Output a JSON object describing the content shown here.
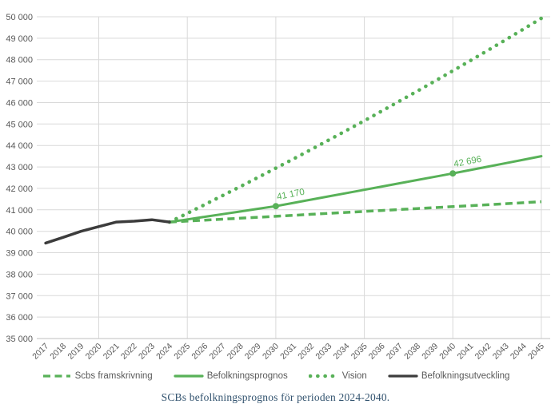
{
  "caption": "SCBs befolkningsprognos för perioden 2024-2040.",
  "colors": {
    "green": "#58b158",
    "black_line": "#3c3c3c",
    "grid": "#d9d9d9",
    "axis_line": "#bfbfbf",
    "tick_text": "#595959",
    "legend_text": "#595959",
    "caption_text": "#31526e",
    "background": "#ffffff"
  },
  "chart_data": {
    "type": "line",
    "title": "",
    "xlabel": "",
    "ylabel": "",
    "grid": true,
    "legend_position": "bottom",
    "ylim": [
      35000,
      50000
    ],
    "y_tick_step": 1000,
    "y_tick_labels": [
      "35 000",
      "36 000",
      "37 000",
      "38 000",
      "39 000",
      "40 000",
      "41 000",
      "42 000",
      "43 000",
      "44 000",
      "45 000",
      "46 000",
      "47 000",
      "48 000",
      "49 000",
      "50 000"
    ],
    "x_categories": [
      "2017",
      "2018",
      "2019",
      "2020",
      "2021",
      "2022",
      "2023",
      "2024",
      "2025",
      "2026",
      "2027",
      "2028",
      "2029",
      "2030",
      "2031",
      "2032",
      "2033",
      "2034",
      "2035",
      "2036",
      "2037",
      "2038",
      "2039",
      "2040",
      "2041",
      "2042",
      "2043",
      "2044",
      "2045"
    ],
    "vertical_gridline_years": [
      "2020",
      "2025",
      "2030",
      "2035",
      "2040",
      "2045"
    ],
    "series": [
      {
        "name": "Scbs framskrivning",
        "line_style": "dashed",
        "color_key": "green",
        "start_year": "2024",
        "values": [
          40430,
          40475,
          40520,
          40565,
          40610,
          40655,
          40700,
          40745,
          40790,
          40835,
          40880,
          40925,
          40970,
          41015,
          41060,
          41105,
          41150,
          41195,
          41240,
          41285,
          41330,
          41380
        ]
      },
      {
        "name": "Befolkningsprognos",
        "line_style": "solid",
        "color_key": "green",
        "start_year": "2024",
        "values": [
          40430,
          40553,
          40677,
          40800,
          40923,
          41047,
          41170,
          41323,
          41475,
          41628,
          41781,
          41933,
          42086,
          42238,
          42391,
          42543,
          42696,
          42857,
          43018,
          43179,
          43339,
          43500
        ],
        "point_labels": [
          {
            "year": "2030",
            "value": 41170,
            "text": "41 170"
          },
          {
            "year": "2040",
            "value": 42696,
            "text": "42 696"
          }
        ]
      },
      {
        "name": "Vision",
        "line_style": "dotted",
        "color_key": "green",
        "start_year": "2024",
        "values": [
          40430,
          40838,
          41251,
          41667,
          42088,
          42513,
          42943,
          43376,
          43814,
          44257,
          44704,
          45155,
          45611,
          46072,
          46537,
          47007,
          47482,
          47962,
          48446,
          48935,
          49430,
          49929
        ]
      },
      {
        "name": "Befolkningsutveckling",
        "line_style": "solid",
        "color_key": "black_line",
        "start_year": "2017",
        "values": [
          39450,
          39720,
          40000,
          40220,
          40430,
          40470,
          40540,
          40430
        ]
      }
    ]
  }
}
